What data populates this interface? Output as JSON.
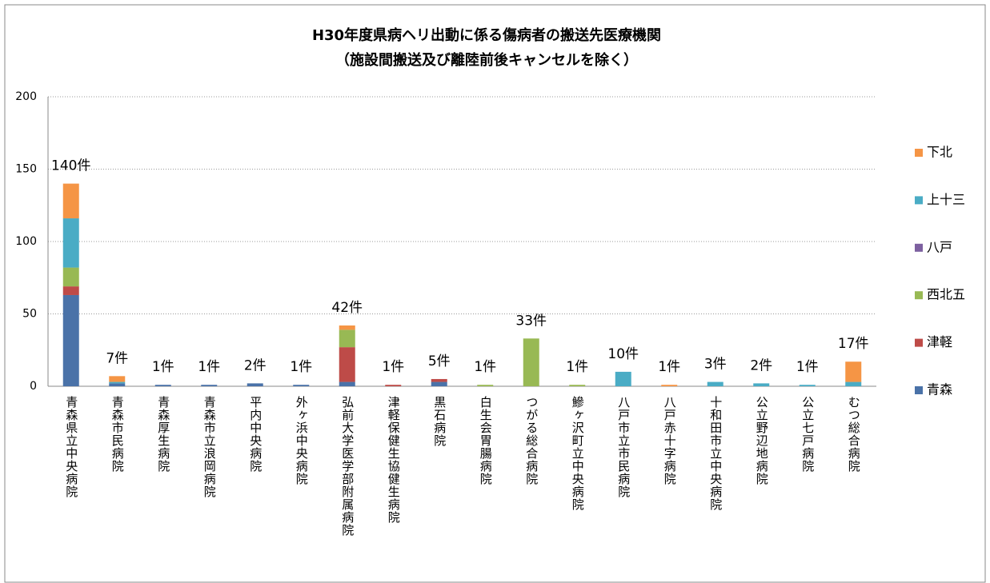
{
  "chart_data": {
    "type": "stacked_bar",
    "title": "H30年度県病ヘリ出動に係る傷病者の搬送先医療機関",
    "subtitle": "（施設間搬送及び離陸前後キャンセルを除く）",
    "categories": [
      "青森県立中央病院",
      "青森市民病院",
      "青森厚生病院",
      "青森市立浪岡病院",
      "平内中央病院",
      "外ヶ浜中央病院",
      "弘前大学医学部附属病院",
      "津軽保健生協健生病院",
      "黒石病院",
      "白生会胃腸病院",
      "つがる総合病院",
      "鰺ヶ沢町立中央病院",
      "八戸市立市民病院",
      "八戸赤十字病院",
      "十和田市立中央病院",
      "公立野辺地病院",
      "公立七戸病院",
      "むつ総合病院"
    ],
    "series": [
      {
        "name": "青森",
        "color": "#4a72a8",
        "values": [
          63,
          2,
          1,
          1,
          2,
          1,
          3,
          0,
          3,
          0,
          0,
          0,
          0,
          0,
          0,
          0,
          0,
          0
        ]
      },
      {
        "name": "津軽",
        "color": "#be4b48",
        "values": [
          6,
          0,
          0,
          0,
          0,
          0,
          24,
          1,
          2,
          0,
          0,
          0,
          0,
          0,
          0,
          0,
          0,
          0
        ]
      },
      {
        "name": "西北五",
        "color": "#98b954",
        "values": [
          13,
          0,
          0,
          0,
          0,
          0,
          12,
          0,
          0,
          1,
          33,
          1,
          0,
          0,
          0,
          0,
          0,
          0
        ]
      },
      {
        "name": "八戸",
        "color": "#7d60a0",
        "values": [
          0,
          0,
          0,
          0,
          0,
          0,
          0,
          0,
          0,
          0,
          0,
          0,
          0,
          0,
          0,
          0,
          0,
          0
        ]
      },
      {
        "name": "上十三",
        "color": "#4aacc5",
        "values": [
          34,
          1,
          0,
          0,
          0,
          0,
          0,
          0,
          0,
          0,
          0,
          0,
          10,
          0,
          3,
          2,
          1,
          3
        ]
      },
      {
        "name": "下北",
        "color": "#f59545",
        "values": [
          24,
          4,
          0,
          0,
          0,
          0,
          3,
          0,
          0,
          0,
          0,
          0,
          0,
          1,
          0,
          0,
          0,
          14
        ]
      }
    ],
    "total_labels": [
      "140件",
      "7件",
      "1件",
      "1件",
      "2件",
      "1件",
      "42件",
      "1件",
      "5件",
      "1件",
      "33件",
      "1件",
      "10件",
      "1件",
      "3件",
      "2件",
      "1件",
      "17件"
    ],
    "ylim": [
      0,
      200
    ],
    "yticks": [
      0,
      50,
      100,
      150,
      200
    ],
    "grid": true
  }
}
